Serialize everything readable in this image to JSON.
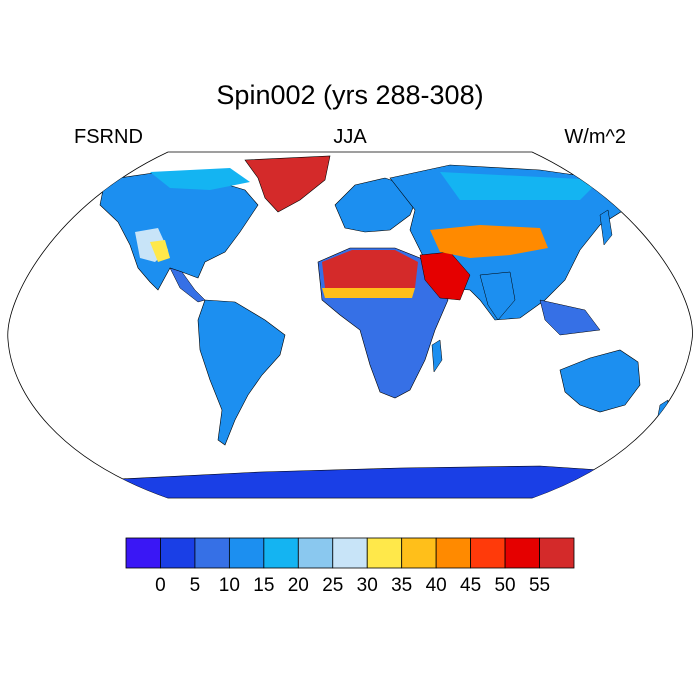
{
  "title": "Spin002 (yrs 288-308)",
  "left_label": "FSRND",
  "center_label": "JJA",
  "right_label": "W/m^2",
  "colorbar": {
    "ticks": [
      "0",
      "5",
      "10",
      "15",
      "20",
      "25",
      "30",
      "35",
      "40",
      "45",
      "50",
      "55"
    ],
    "colors": [
      "#3a17f5",
      "#1a3fe6",
      "#3670e6",
      "#1c8ff0",
      "#14b4f2",
      "#8ac8ef",
      "#c8e4f8",
      "#ffe84a",
      "#ffbf1a",
      "#ff8a00",
      "#ff3a0a",
      "#e50000",
      "#d42a2a"
    ]
  },
  "regions": [
    {
      "name": "greenland",
      "level": 55
    },
    {
      "name": "sahara",
      "level": 55
    },
    {
      "name": "arabia",
      "level": 52
    },
    {
      "name": "sahel",
      "level": 35
    },
    {
      "name": "central-asia",
      "level": 40
    },
    {
      "name": "western-us",
      "level": 30
    },
    {
      "name": "southwest-us",
      "level": 35
    },
    {
      "name": "antarctica",
      "level": 3
    }
  ]
}
